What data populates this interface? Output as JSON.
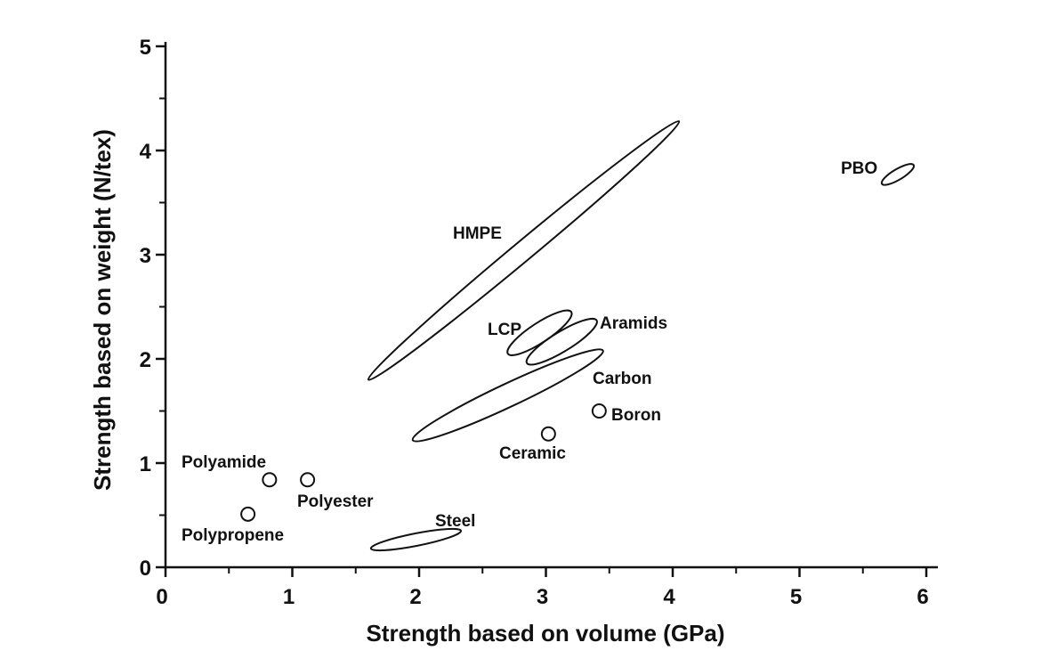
{
  "chart_data": {
    "type": "scatter",
    "title": "",
    "xlabel": "Strength based on volume (GPa)",
    "ylabel": "Strength based on weight (N/tex)",
    "xlim": [
      0,
      6
    ],
    "ylim": [
      0,
      5
    ],
    "x_ticks": [
      "0",
      "1",
      "2",
      "3",
      "4",
      "5",
      "6"
    ],
    "y_ticks": [
      "0",
      "1",
      "2",
      "3",
      "4",
      "5"
    ],
    "grid": false,
    "legend": "none",
    "materials": [
      {
        "name": "HMPE",
        "shape": "region",
        "x_range": [
          1.6,
          4.05
        ],
        "y_range": [
          1.8,
          4.28
        ]
      },
      {
        "name": "PBO",
        "shape": "region",
        "x_range": [
          5.65,
          5.9
        ],
        "y_range": [
          3.68,
          3.86
        ]
      },
      {
        "name": "LCP",
        "shape": "region",
        "x_range": [
          2.7,
          3.2
        ],
        "y_range": [
          2.05,
          2.45
        ]
      },
      {
        "name": "Aramids",
        "shape": "region",
        "x_range": [
          2.85,
          3.4
        ],
        "y_range": [
          1.96,
          2.37
        ]
      },
      {
        "name": "Carbon",
        "shape": "region",
        "x_range": [
          1.95,
          3.45
        ],
        "y_range": [
          1.22,
          2.08
        ]
      },
      {
        "name": "Steel",
        "shape": "region",
        "x_range": [
          1.62,
          2.33
        ],
        "y_range": [
          0.18,
          0.35
        ]
      },
      {
        "name": "Boron",
        "shape": "point",
        "x": 3.42,
        "y": 1.5
      },
      {
        "name": "Ceramic",
        "shape": "point",
        "x": 3.02,
        "y": 1.28
      },
      {
        "name": "Polyamide",
        "shape": "point",
        "x": 0.82,
        "y": 0.84
      },
      {
        "name": "Polyester",
        "shape": "point",
        "x": 1.12,
        "y": 0.84
      },
      {
        "name": "Polypropene",
        "shape": "point",
        "x": 0.65,
        "y": 0.51
      }
    ]
  }
}
